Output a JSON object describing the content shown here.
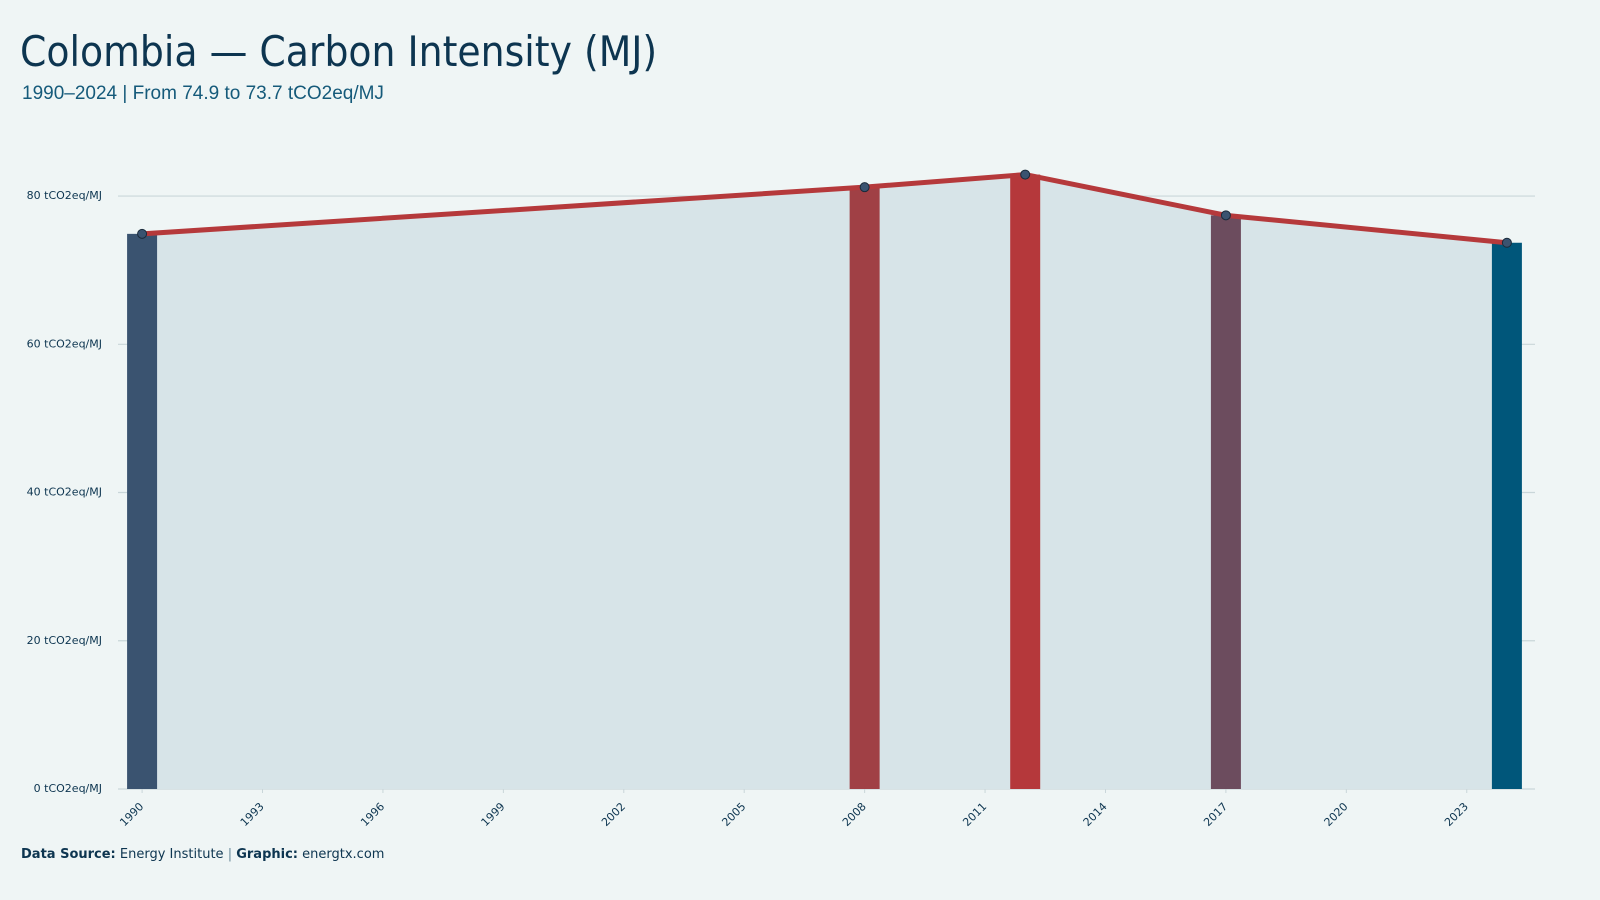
{
  "chart_data": {
    "type": "bar",
    "title": "Colombia — Carbon Intensity (MJ)",
    "subtitle": "1990–2024 | From 74.9 to 73.7 tCO2eq/MJ",
    "x": [
      1990,
      2008,
      2012,
      2017,
      2024
    ],
    "values": [
      74.9,
      81.2,
      82.9,
      77.4,
      73.7
    ],
    "colors": [
      "#3a5370",
      "#a04045",
      "#b5383b",
      "#6c4c5e",
      "#00567a"
    ],
    "line_color": "#b5393b",
    "area_color": "#d7e4e8",
    "point_color": "#3a5370",
    "xlim": [
      1989.4,
      2024.7
    ],
    "xticks": [
      1990,
      1993,
      1996,
      1999,
      2002,
      2005,
      2008,
      2011,
      2014,
      2017,
      2020,
      2023
    ],
    "ylim": [
      0,
      85
    ],
    "yticks": [
      {
        "value": 0,
        "label": "0 tCO2eq/MJ"
      },
      {
        "value": 20,
        "label": "20 tCO2eq/MJ"
      },
      {
        "value": 40,
        "label": "40 tCO2eq/MJ"
      },
      {
        "value": 60,
        "label": "60 tCO2eq/MJ"
      },
      {
        "value": 80,
        "label": "80 tCO2eq/MJ"
      }
    ],
    "grid": true,
    "footer": {
      "source_label": "Data Source:",
      "source": "Energy Institute",
      "separator": "|",
      "graphic_label": "Graphic:",
      "graphic": "energtx.com"
    }
  }
}
